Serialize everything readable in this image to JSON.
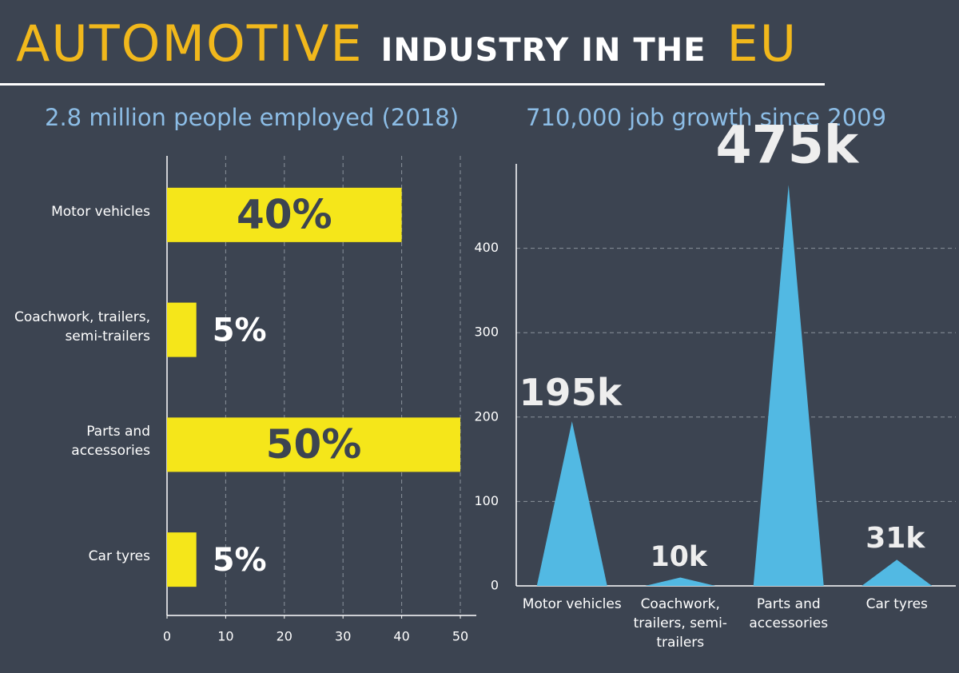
{
  "header": {
    "title_parts": [
      "AUTOMOTIVE",
      "INDUSTRY IN THE",
      "EU"
    ]
  },
  "chart_data": [
    {
      "type": "hbar",
      "title": "2.8 million people employed (2018)",
      "categories": [
        "Motor vehicles",
        "Coachwork, trailers, semi-trailers",
        "Parts and accessories",
        "Car tyres"
      ],
      "values": [
        40,
        5,
        50,
        5
      ],
      "value_labels": [
        "40%",
        "5%",
        "50%",
        "5%"
      ],
      "color": "#f5e61a",
      "xlim": [
        0,
        50
      ],
      "xticks": [
        0,
        10,
        20,
        30,
        40,
        50
      ],
      "grid": true
    },
    {
      "type": "triangle",
      "title": "710,000 job growth since 2009",
      "categories": [
        "Motor vehicles",
        "Coachwork, trailers, semi-trailers",
        "Parts and accessories",
        "Car tyres"
      ],
      "values": [
        195,
        10,
        475,
        31
      ],
      "value_labels": [
        "195k",
        "10k",
        "475k",
        "31k"
      ],
      "color": "#52b9e3",
      "ylim": [
        0,
        500
      ],
      "yticks": [
        0,
        100,
        200,
        300,
        400
      ],
      "grid": true
    }
  ]
}
